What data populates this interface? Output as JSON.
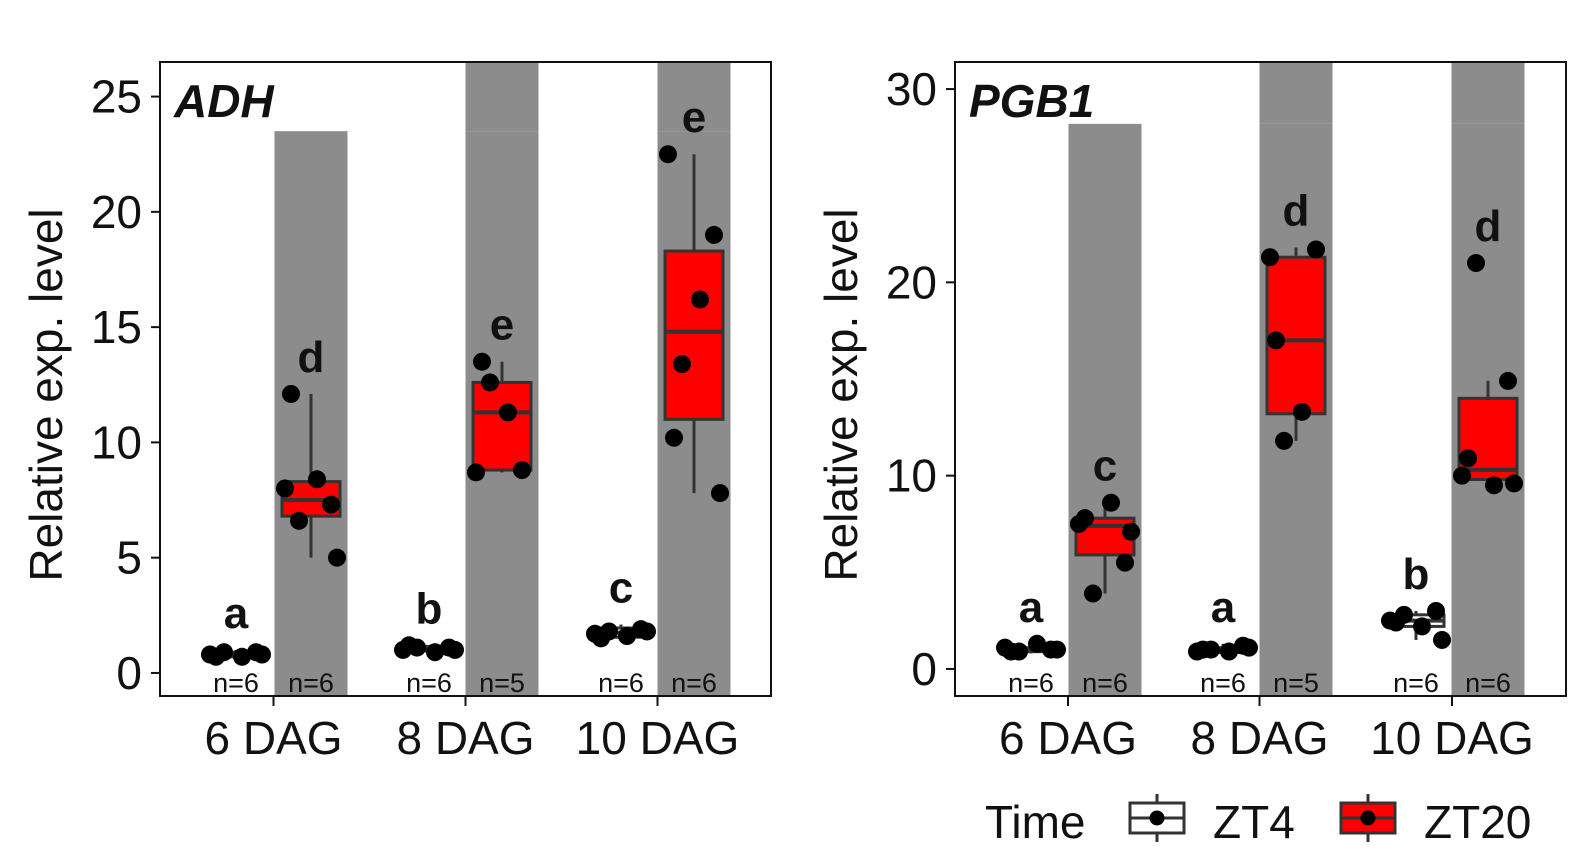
{
  "legend": {
    "title": "Time",
    "items": [
      {
        "label": "ZT4",
        "fill": "#ffffff"
      },
      {
        "label": "ZT20",
        "fill": "#ff0000"
      }
    ]
  },
  "colors": {
    "dark_shade": "#8c8c8c",
    "box_stroke": "#333333",
    "zt20_fill": "#ff0000",
    "zt4_fill": "#ffffff",
    "point": "#000000"
  },
  "chart_data": [
    {
      "type": "box",
      "title": "ADH",
      "ylabel": "Relative exp. level",
      "ylim": [
        -1,
        26.5
      ],
      "yticks": [
        0,
        5,
        10,
        15,
        20,
        25
      ],
      "categories": [
        "6 DAG",
        "8 DAG",
        "10 DAG"
      ],
      "shade_top": 23.5,
      "groups": [
        {
          "category": "6 DAG",
          "time": "ZT4",
          "letter": "a",
          "n": "n=6",
          "box": {
            "q1": 0.7,
            "median": 0.8,
            "q3": 0.9,
            "whisker_low": 0.6,
            "whisker_high": 1.0
          },
          "points": [
            0.8,
            0.9,
            0.7,
            0.9,
            0.7,
            0.8
          ]
        },
        {
          "category": "6 DAG",
          "time": "ZT20",
          "letter": "d",
          "n": "n=6",
          "box": {
            "q1": 6.8,
            "median": 7.5,
            "q3": 8.3,
            "whisker_low": 5.0,
            "whisker_high": 12.1
          },
          "points": [
            8.0,
            6.6,
            8.4,
            7.3,
            12.1,
            5.0
          ]
        },
        {
          "category": "8 DAG",
          "time": "ZT4",
          "letter": "b",
          "n": "n=6",
          "box": {
            "q1": 0.95,
            "median": 1.05,
            "q3": 1.15,
            "whisker_low": 0.9,
            "whisker_high": 1.2
          },
          "points": [
            1.0,
            1.1,
            0.9,
            1.1,
            1.2,
            1.0
          ]
        },
        {
          "category": "8 DAG",
          "time": "ZT20",
          "letter": "e",
          "n": "n=5",
          "box": {
            "q1": 8.8,
            "median": 11.3,
            "q3": 12.6,
            "whisker_low": 8.7,
            "whisker_high": 13.5
          },
          "points": [
            8.7,
            12.6,
            11.3,
            8.8,
            13.5
          ]
        },
        {
          "category": "10 DAG",
          "time": "ZT4",
          "letter": "c",
          "n": "n=6",
          "box": {
            "q1": 1.55,
            "median": 1.75,
            "q3": 1.95,
            "whisker_low": 1.4,
            "whisker_high": 2.1
          },
          "points": [
            1.7,
            1.8,
            1.6,
            1.9,
            1.5,
            1.8
          ]
        },
        {
          "category": "10 DAG",
          "time": "ZT20",
          "letter": "e",
          "n": "n=6",
          "box": {
            "q1": 11.0,
            "median": 14.8,
            "q3": 18.3,
            "whisker_low": 7.8,
            "whisker_high": 22.5
          },
          "points": [
            22.5,
            13.4,
            16.2,
            19.0,
            10.2,
            7.8
          ]
        }
      ]
    },
    {
      "type": "box",
      "title": "PGB1",
      "ylabel": "Relative exp. level",
      "ylim": [
        -1.4,
        31.4
      ],
      "yticks": [
        0,
        10,
        20,
        30
      ],
      "categories": [
        "6 DAG",
        "8 DAG",
        "10 DAG"
      ],
      "shade_top": 28.2,
      "groups": [
        {
          "category": "6 DAG",
          "time": "ZT4",
          "letter": "a",
          "n": "n=6",
          "box": {
            "q1": 0.9,
            "median": 1.0,
            "q3": 1.1,
            "whisker_low": 0.8,
            "whisker_high": 1.3
          },
          "points": [
            1.1,
            0.9,
            1.3,
            1.0,
            0.9,
            1.0
          ]
        },
        {
          "category": "6 DAG",
          "time": "ZT20",
          "letter": "c",
          "n": "n=6",
          "box": {
            "q1": 5.9,
            "median": 7.4,
            "q3": 7.8,
            "whisker_low": 3.9,
            "whisker_high": 8.6
          },
          "points": [
            7.5,
            3.9,
            8.6,
            5.5,
            7.8,
            7.1
          ]
        },
        {
          "category": "8 DAG",
          "time": "ZT4",
          "letter": "a",
          "n": "n=6",
          "box": {
            "q1": 0.85,
            "median": 0.95,
            "q3": 1.1,
            "whisker_low": 0.8,
            "whisker_high": 1.3
          },
          "points": [
            0.9,
            1.0,
            0.9,
            1.2,
            1.0,
            1.1
          ]
        },
        {
          "category": "8 DAG",
          "time": "ZT20",
          "letter": "d",
          "n": "n=5",
          "box": {
            "q1": 13.2,
            "median": 17.0,
            "q3": 21.3,
            "whisker_low": 11.8,
            "whisker_high": 21.8
          },
          "points": [
            21.3,
            11.8,
            13.3,
            21.7,
            17.0
          ]
        },
        {
          "category": "10 DAG",
          "time": "ZT4",
          "letter": "b",
          "n": "n=6",
          "box": {
            "q1": 2.2,
            "median": 2.5,
            "q3": 2.8,
            "whisker_low": 1.5,
            "whisker_high": 3.0
          },
          "points": [
            2.5,
            2.8,
            2.2,
            3.0,
            2.4,
            1.5
          ]
        },
        {
          "category": "10 DAG",
          "time": "ZT20",
          "letter": "d",
          "n": "n=6",
          "box": {
            "q1": 9.8,
            "median": 10.3,
            "q3": 14.0,
            "whisker_low": 9.5,
            "whisker_high": 14.9
          },
          "points": [
            10.0,
            21.0,
            9.5,
            14.9,
            10.9,
            9.6
          ]
        }
      ]
    }
  ]
}
